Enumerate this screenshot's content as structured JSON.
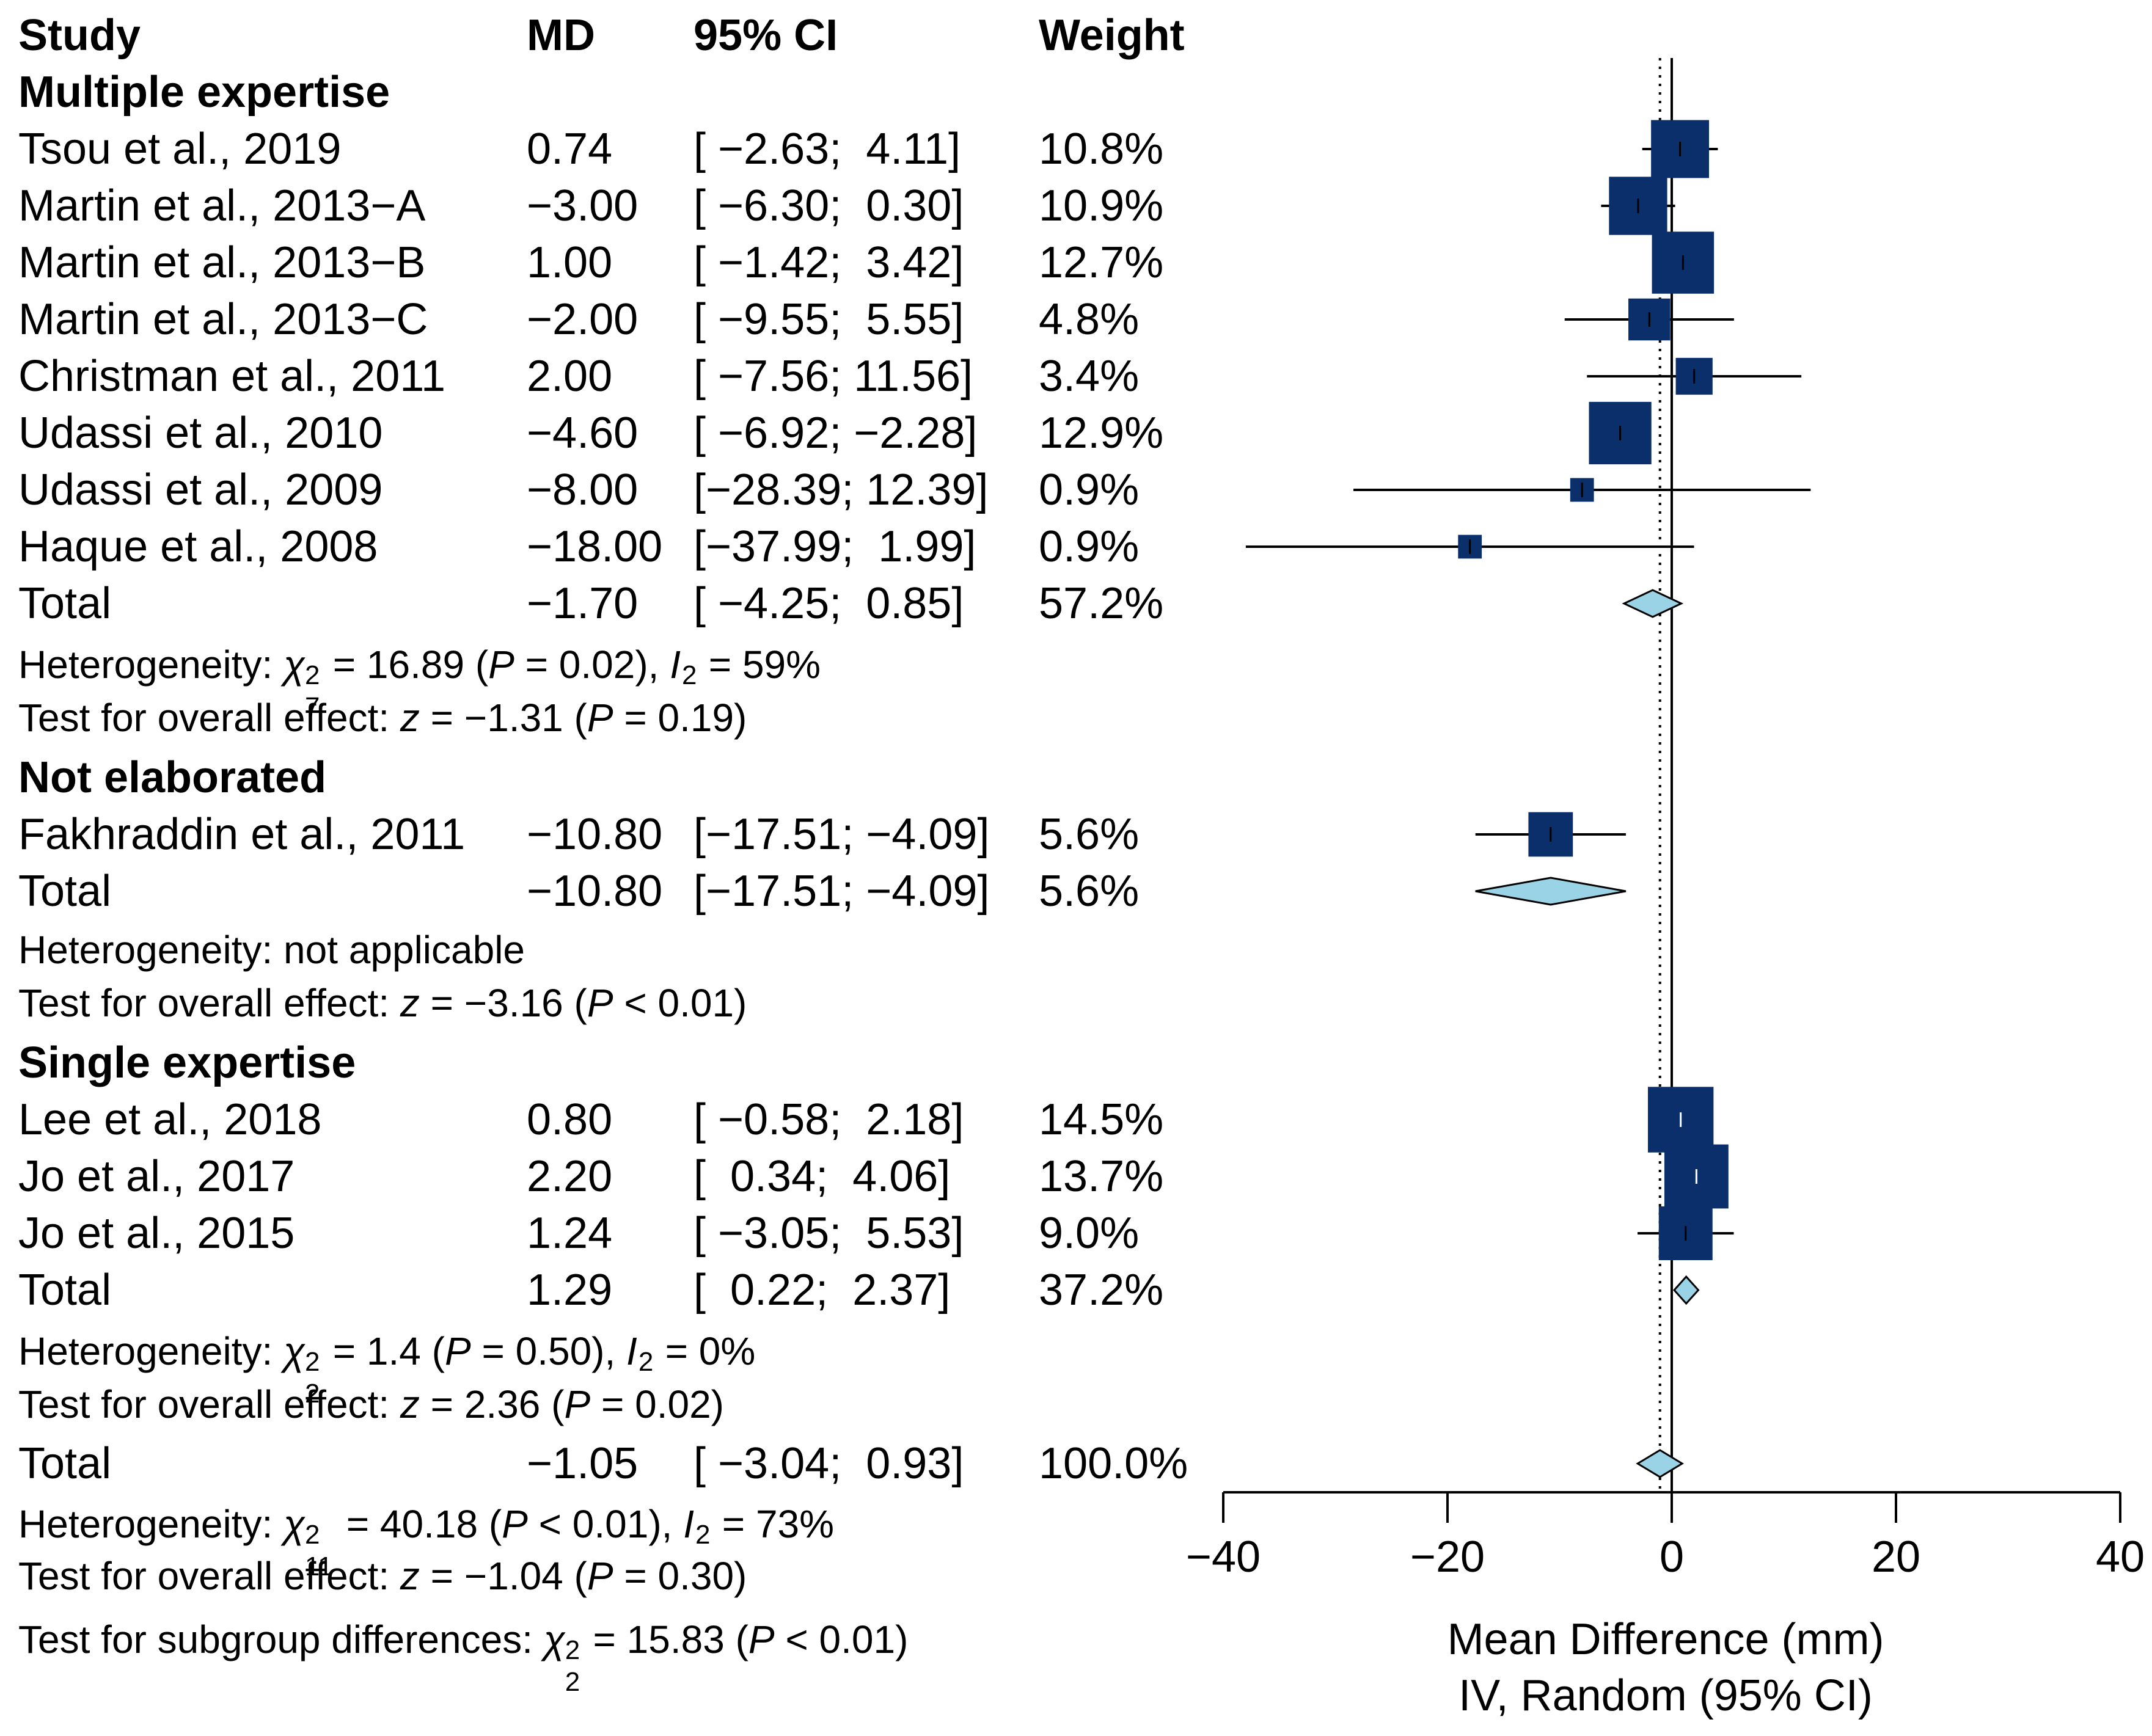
{
  "headers": {
    "study": "Study",
    "md": "MD",
    "ci": "95% CI",
    "weight": "Weight"
  },
  "chart_data": {
    "type": "forest",
    "xlabel": "Mean Difference (mm)",
    "xlabel2": "IV, Random (95% CI)",
    "xlim": [
      -40,
      40
    ],
    "xticks": [
      -40,
      -20,
      0,
      20,
      40
    ],
    "xtick_labels": [
      "−40",
      "−20",
      "0",
      "20",
      "40"
    ],
    "overall_effect_line": -1.05,
    "colors": {
      "study_box": "#0b2f6b",
      "diamond": "#9bd3e6",
      "line": "#000000"
    },
    "groups": [
      {
        "name": "Multiple expertise",
        "studies": [
          {
            "study": "Tsou et al., 2019",
            "md": 0.74,
            "lo": -2.63,
            "hi": 4.11,
            "weight": 10.8,
            "md_text": "0.74",
            "ci_text": "[ −2.63;  4.11]",
            "w_text": "10.8%"
          },
          {
            "study": "Martin et al., 2013−A",
            "md": -3.0,
            "lo": -6.3,
            "hi": 0.3,
            "weight": 10.9,
            "md_text": "−3.00",
            "ci_text": "[ −6.30;  0.30]",
            "w_text": "10.9%"
          },
          {
            "study": "Martin et al., 2013−B",
            "md": 1.0,
            "lo": -1.42,
            "hi": 3.42,
            "weight": 12.7,
            "md_text": "1.00",
            "ci_text": "[ −1.42;  3.42]",
            "w_text": "12.7%"
          },
          {
            "study": "Martin et al., 2013−C",
            "md": -2.0,
            "lo": -9.55,
            "hi": 5.55,
            "weight": 4.8,
            "md_text": "−2.00",
            "ci_text": "[ −9.55;  5.55]",
            "w_text": "4.8%"
          },
          {
            "study": "Christman et al., 2011",
            "md": 2.0,
            "lo": -7.56,
            "hi": 11.56,
            "weight": 3.4,
            "md_text": "2.00",
            "ci_text": "[ −7.56; 11.56]",
            "w_text": "3.4%"
          },
          {
            "study": "Udassi et al., 2010",
            "md": -4.6,
            "lo": -6.92,
            "hi": -2.28,
            "weight": 12.9,
            "md_text": "−4.60",
            "ci_text": "[ −6.92; −2.28]",
            "w_text": "12.9%"
          },
          {
            "study": "Udassi et al., 2009",
            "md": -8.0,
            "lo": -28.39,
            "hi": 12.39,
            "weight": 0.9,
            "md_text": "−8.00",
            "ci_text": "[−28.39; 12.39]",
            "w_text": "0.9%"
          },
          {
            "study": "Haque et al., 2008",
            "md": -18.0,
            "lo": -37.99,
            "hi": 1.99,
            "weight": 0.9,
            "md_text": "−18.00",
            "ci_text": "[−37.99;  1.99]",
            "w_text": "0.9%"
          }
        ],
        "total": {
          "label": "Total",
          "md": -1.7,
          "lo": -4.25,
          "hi": 0.85,
          "md_text": "−1.70",
          "ci_text": "[ −4.25;  0.85]",
          "w_text": "57.2%"
        },
        "heterogeneity": {
          "prefix": "Heterogeneity: ",
          "chi": "χ",
          "df": "7",
          "sup": "2",
          "stat": " = 16.89 (",
          "p": "P",
          "p_val": " = 0.02), ",
          "i": "I",
          "i_sup": "2",
          "i_val": " = 59%"
        },
        "overall": {
          "prefix": "Test for overall effect: ",
          "z": "z",
          "z_val": " = −1.31 (",
          "p": "P",
          "p_val": " = 0.19)"
        }
      },
      {
        "name": "Not elaborated",
        "studies": [
          {
            "study": "Fakhraddin et al., 2011",
            "md": -10.8,
            "lo": -17.51,
            "hi": -4.09,
            "weight": 5.6,
            "md_text": "−10.80",
            "ci_text": "[−17.51; −4.09]",
            "w_text": "5.6%"
          }
        ],
        "total": {
          "label": "Total",
          "md": -10.8,
          "lo": -17.51,
          "hi": -4.09,
          "md_text": "−10.80",
          "ci_text": "[−17.51; −4.09]",
          "w_text": "5.6%"
        },
        "heterogeneity_text": "Heterogeneity: not applicable",
        "overall": {
          "prefix": "Test for overall effect: ",
          "z": "z",
          "z_val": " = −3.16 (",
          "p": "P",
          "p_val": " < 0.01)"
        }
      },
      {
        "name": "Single expertise",
        "studies": [
          {
            "study": "Lee et al., 2018",
            "md": 0.8,
            "lo": -0.58,
            "hi": 2.18,
            "weight": 14.5,
            "md_text": "0.80",
            "ci_text": "[ −0.58;  2.18]",
            "w_text": "14.5%"
          },
          {
            "study": "Jo et al., 2017",
            "md": 2.2,
            "lo": 0.34,
            "hi": 4.06,
            "weight": 13.7,
            "md_text": "2.20",
            "ci_text": "[  0.34;  4.06]",
            "w_text": "13.7%"
          },
          {
            "study": "Jo et al., 2015",
            "md": 1.24,
            "lo": -3.05,
            "hi": 5.53,
            "weight": 9.0,
            "md_text": "1.24",
            "ci_text": "[ −3.05;  5.53]",
            "w_text": "9.0%"
          }
        ],
        "total": {
          "label": "Total",
          "md": 1.29,
          "lo": 0.22,
          "hi": 2.37,
          "md_text": "1.29",
          "ci_text": "[  0.22;  2.37]",
          "w_text": "37.2%"
        },
        "heterogeneity": {
          "prefix": "Heterogeneity: ",
          "chi": "χ",
          "df": "2",
          "sup": "2",
          "stat": " = 1.4 (",
          "p": "P",
          "p_val": " = 0.50), ",
          "i": "I",
          "i_sup": "2",
          "i_val": " = 0%"
        },
        "overall": {
          "prefix": "Test for overall effect: ",
          "z": "z",
          "z_val": " = 2.36 (",
          "p": "P",
          "p_val": " = 0.02)"
        }
      }
    ],
    "overall": {
      "label": "Total",
      "md": -1.05,
      "lo": -3.04,
      "hi": 0.93,
      "md_text": "−1.05",
      "ci_text": "[ −3.04;  0.93]",
      "w_text": "100.0%",
      "heterogeneity": {
        "prefix": "Heterogeneity: ",
        "chi": "χ",
        "df": "11",
        "sup": "2",
        "stat": " = 40.18 (",
        "p": "P",
        "p_val": " < 0.01), ",
        "i": "I",
        "i_sup": "2",
        "i_val": " = 73%"
      },
      "overall_test": {
        "prefix": "Test for overall effect: ",
        "z": "z",
        "z_val": " = −1.04 (",
        "p": "P",
        "p_val": " = 0.30)"
      },
      "subgroup": {
        "prefix": "Test for subgroup differences: ",
        "chi": "χ",
        "df": "2",
        "sup": "2",
        "stat": " = 15.83 (",
        "p": "P",
        "p_val": " < 0.01)"
      }
    }
  }
}
